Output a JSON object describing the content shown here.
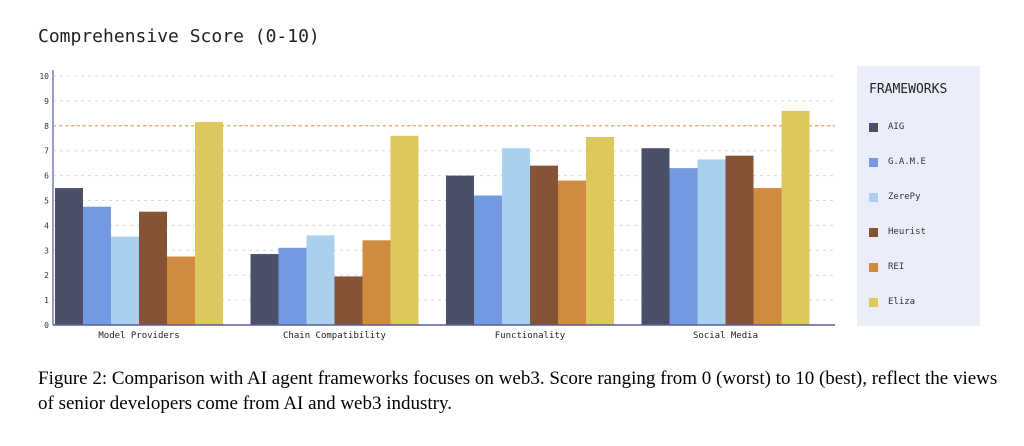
{
  "chart_data": {
    "type": "bar",
    "title": "Comprehensive Score (0-10)",
    "xlabel": "",
    "ylabel": "",
    "ylim": [
      0,
      10
    ],
    "yticks": [
      "0",
      "1",
      "2",
      "3",
      "4",
      "5",
      "6",
      "7",
      "8",
      "9",
      "10"
    ],
    "reference_line": 8,
    "grid": true,
    "legend_title": "FRAMEWORKS",
    "legend_position": "right",
    "categories": [
      "Model Providers",
      "Chain Compatibility",
      "Functionality",
      "Social Media"
    ],
    "series": [
      {
        "name": "AIG",
        "color": "#4a5068",
        "values": [
          5.5,
          2.85,
          6.0,
          7.1
        ]
      },
      {
        "name": "G.A.M.E",
        "color": "#7399e0",
        "values": [
          4.75,
          3.1,
          5.2,
          6.3
        ]
      },
      {
        "name": "ZerePy",
        "color": "#a9d1ee",
        "values": [
          3.55,
          3.6,
          7.1,
          6.65
        ]
      },
      {
        "name": "Heurist",
        "color": "#845434",
        "values": [
          4.55,
          1.95,
          6.4,
          6.8
        ]
      },
      {
        "name": "REI",
        "color": "#d08b40",
        "values": [
          2.75,
          3.4,
          5.8,
          5.5
        ]
      },
      {
        "name": "Eliza",
        "color": "#dcc85c",
        "values": [
          8.15,
          7.6,
          7.55,
          8.6
        ]
      }
    ]
  },
  "caption": "Figure 2: Comparison with AI agent frameworks focuses on web3. Score ranging from 0 (worst) to 10 (best), reflect the views of senior developers come from AI and web3 industry."
}
